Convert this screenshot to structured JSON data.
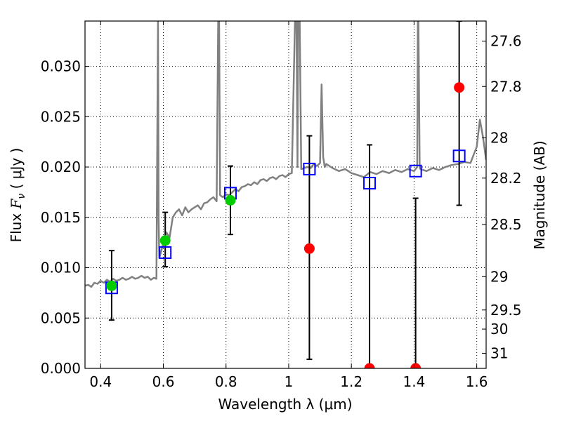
{
  "chart_data": {
    "type": "scatter",
    "xlabel": "Wavelength  λ (μm)",
    "ylabel": "Flux  F_ν  ( μJy )",
    "ylabel_parts": {
      "pre": "Flux  ",
      "sym": "F",
      "sub": "ν",
      "post": "  ( μJy )"
    },
    "y2label": "Magnitude (AB)",
    "xlim": [
      0.35,
      1.63
    ],
    "ylim": [
      0.0,
      0.0345
    ],
    "grid": true,
    "x_ticks": [
      0.4,
      0.6,
      0.8,
      1.0,
      1.2,
      1.4,
      1.6
    ],
    "x_tick_labels": [
      "0.4",
      "0.6",
      "0.8",
      "1",
      "1.2",
      "1.4",
      "1.6"
    ],
    "y_ticks": [
      0.0,
      0.005,
      0.01,
      0.015,
      0.02,
      0.025,
      0.03
    ],
    "y_tick_labels": [
      "0.000",
      "0.005",
      "0.010",
      "0.015",
      "0.020",
      "0.025",
      "0.030"
    ],
    "mag_ticks": [
      {
        "label": "27.6",
        "flux": 0.0325
      },
      {
        "label": "27.8",
        "flux": 0.028
      },
      {
        "label": "28",
        "flux": 0.0229
      },
      {
        "label": "28.2",
        "flux": 0.0189
      },
      {
        "label": "28.5",
        "flux": 0.0143
      },
      {
        "label": "29",
        "flux": 0.0091
      },
      {
        "label": "29.5",
        "flux": 0.0058
      },
      {
        "label": "30",
        "flux": 0.0039
      },
      {
        "label": "31",
        "flux": 0.0015
      }
    ],
    "colors": {
      "spectrum": "#808080",
      "model_box": "#0000ff",
      "detection": "#00cc00",
      "upper_limit": "#ff0000",
      "errorbar": "#000000",
      "grid": "#000000"
    },
    "spectrum": {
      "x": [
        0.35,
        0.36,
        0.37,
        0.38,
        0.39,
        0.4,
        0.41,
        0.42,
        0.43,
        0.44,
        0.45,
        0.46,
        0.47,
        0.48,
        0.49,
        0.5,
        0.51,
        0.52,
        0.53,
        0.54,
        0.55,
        0.56,
        0.57,
        0.578,
        0.583,
        0.585,
        0.587,
        0.592,
        0.6,
        0.61,
        0.62,
        0.63,
        0.64,
        0.65,
        0.66,
        0.67,
        0.68,
        0.69,
        0.7,
        0.71,
        0.72,
        0.73,
        0.74,
        0.75,
        0.76,
        0.77,
        0.775,
        0.778,
        0.781,
        0.79,
        0.8,
        0.81,
        0.82,
        0.83,
        0.84,
        0.85,
        0.86,
        0.87,
        0.88,
        0.89,
        0.9,
        0.91,
        0.92,
        0.93,
        0.94,
        0.95,
        0.96,
        0.97,
        0.98,
        0.99,
        1.0,
        1.01,
        1.02,
        1.025,
        1.028,
        1.03,
        1.035,
        1.04,
        1.06,
        1.07,
        1.08,
        1.09,
        1.1,
        1.105,
        1.11,
        1.115,
        1.12,
        1.14,
        1.16,
        1.18,
        1.2,
        1.22,
        1.24,
        1.26,
        1.28,
        1.3,
        1.32,
        1.34,
        1.36,
        1.38,
        1.4,
        1.41,
        1.412,
        1.414,
        1.418,
        1.42,
        1.44,
        1.46,
        1.48,
        1.5,
        1.52,
        1.54,
        1.56,
        1.58,
        1.6,
        1.61,
        1.62,
        1.63
      ],
      "y": [
        0.0082,
        0.0083,
        0.0081,
        0.0085,
        0.0084,
        0.0087,
        0.0085,
        0.0088,
        0.0086,
        0.0089,
        0.0087,
        0.0088,
        0.009,
        0.0088,
        0.0089,
        0.0091,
        0.0089,
        0.009,
        0.0092,
        0.009,
        0.0091,
        0.0088,
        0.009,
        0.0089,
        0.0345,
        0.015,
        0.011,
        0.0115,
        0.0125,
        0.0135,
        0.013,
        0.015,
        0.0155,
        0.0158,
        0.0152,
        0.016,
        0.0155,
        0.0158,
        0.016,
        0.0162,
        0.0158,
        0.0164,
        0.0165,
        0.0168,
        0.017,
        0.0166,
        0.0345,
        0.0345,
        0.0172,
        0.017,
        0.0173,
        0.0172,
        0.0175,
        0.0178,
        0.0176,
        0.018,
        0.0181,
        0.0183,
        0.0182,
        0.0185,
        0.0183,
        0.0187,
        0.0188,
        0.0186,
        0.0189,
        0.019,
        0.0188,
        0.0191,
        0.0192,
        0.019,
        0.0193,
        0.0194,
        0.0345,
        0.0345,
        0.02,
        0.0345,
        0.0345,
        0.0198,
        0.02,
        0.0199,
        0.0203,
        0.0201,
        0.0204,
        0.0282,
        0.021,
        0.02,
        0.0203,
        0.0199,
        0.0196,
        0.0198,
        0.0194,
        0.0192,
        0.019,
        0.0195,
        0.0193,
        0.0196,
        0.0194,
        0.0197,
        0.0195,
        0.0198,
        0.0196,
        0.02,
        0.0345,
        0.0345,
        0.02,
        0.0198,
        0.0196,
        0.0199,
        0.0197,
        0.02,
        0.0202,
        0.0203,
        0.0205,
        0.0204,
        0.022,
        0.0247,
        0.023,
        0.0207
      ]
    },
    "model_boxes": [
      {
        "x": 0.435,
        "y": 0.008
      },
      {
        "x": 0.606,
        "y": 0.0115
      },
      {
        "x": 0.814,
        "y": 0.0174
      },
      {
        "x": 1.066,
        "y": 0.0198
      },
      {
        "x": 1.258,
        "y": 0.0184
      },
      {
        "x": 1.405,
        "y": 0.0196
      },
      {
        "x": 1.544,
        "y": 0.0211
      }
    ],
    "detections": [
      {
        "x": 0.435,
        "y": 0.0082,
        "yerr_low": 0.0048,
        "yerr_high": 0.0117
      },
      {
        "x": 0.606,
        "y": 0.0127,
        "yerr_low": 0.0101,
        "yerr_high": 0.0155
      },
      {
        "x": 0.814,
        "y": 0.0167,
        "yerr_low": 0.0133,
        "yerr_high": 0.0201
      }
    ],
    "upper_limits": [
      {
        "x": 1.066,
        "y": 0.0119,
        "yerr_low": 0.0009,
        "yerr_high": 0.0231
      },
      {
        "x": 1.258,
        "y": 0.0,
        "yerr_low": 0.0,
        "yerr_high": 0.0222
      },
      {
        "x": 1.405,
        "y": 0.0,
        "yerr_low": 0.0,
        "yerr_high": 0.0169
      },
      {
        "x": 1.544,
        "y": 0.0279,
        "yerr_low": 0.0162,
        "yerr_high": 0.0345
      }
    ]
  }
}
